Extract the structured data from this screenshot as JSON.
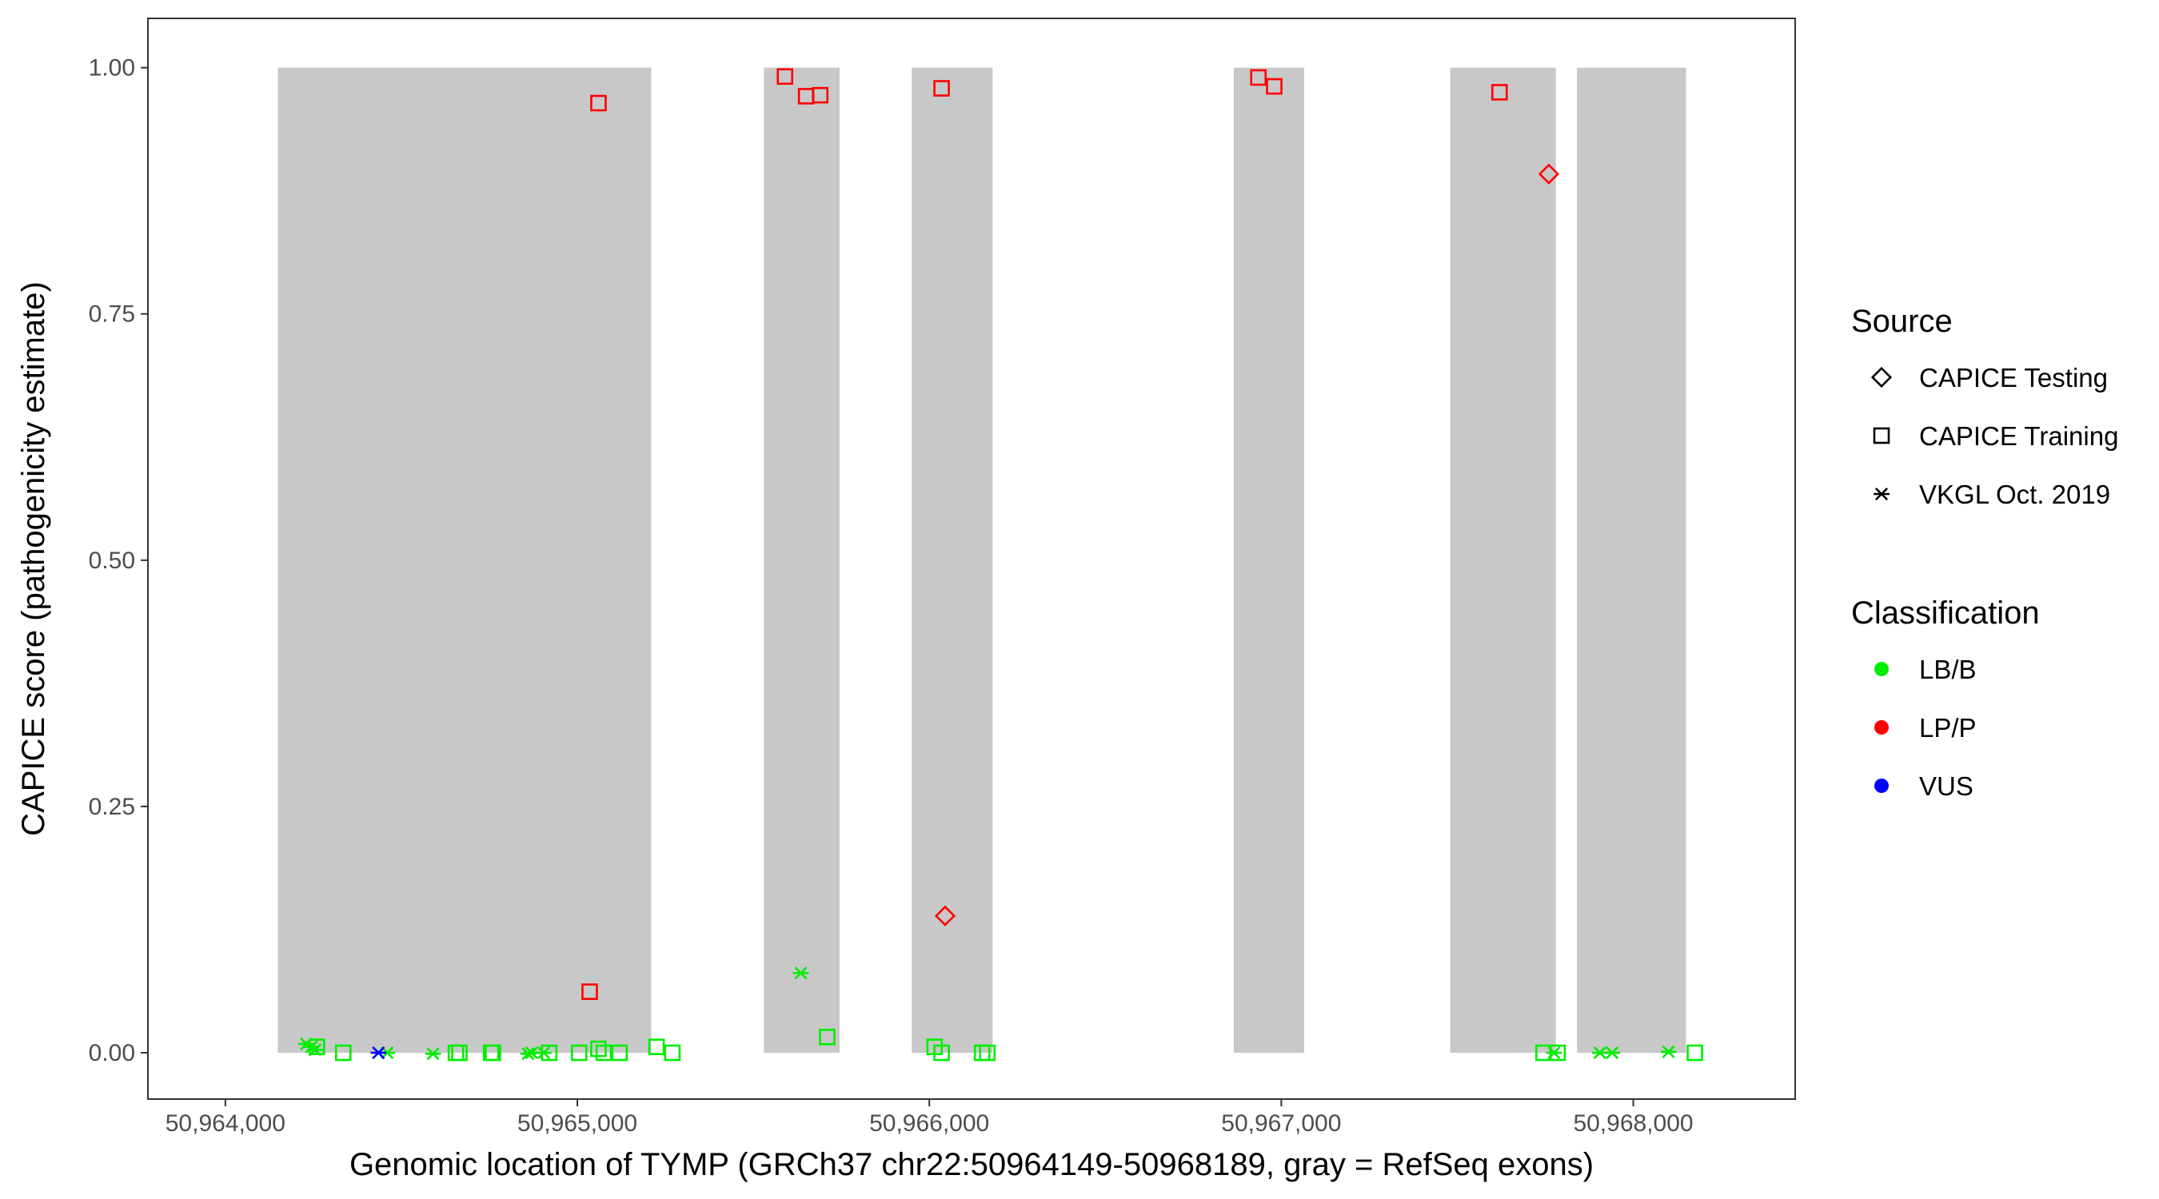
{
  "chart_data": {
    "type": "scatter",
    "xlabel": "Genomic location of TYMP (GRCh37 chr22:50964149-50968189, gray = RefSeq exons)",
    "ylabel": "CAPICE score (pathogenicity estimate)",
    "xlim": [
      50963780,
      50968460
    ],
    "ylim": [
      -0.047,
      1.05
    ],
    "x_ticks": [
      50964000,
      50965000,
      50966000,
      50967000,
      50968000
    ],
    "x_tick_labels": [
      "50,964,000",
      "50,965,000",
      "50,966,000",
      "50,967,000",
      "50,968,000"
    ],
    "y_ticks": [
      0,
      0.25,
      0.5,
      0.75,
      1.0
    ],
    "y_tick_labels": [
      "0.00",
      "0.25",
      "0.50",
      "0.75",
      "1.00"
    ],
    "grid": false,
    "exons": [
      [
        50964149,
        50965210
      ],
      [
        50965530,
        50965745
      ],
      [
        50965950,
        50966180
      ],
      [
        50966865,
        50967065
      ],
      [
        50967480,
        50967780
      ],
      [
        50967840,
        50968150
      ]
    ],
    "exon_color": "#c8c8c8",
    "legend": {
      "placement": "right",
      "source_title": "Source",
      "source_items": [
        {
          "label": "CAPICE Testing",
          "shape": "diamond"
        },
        {
          "label": "CAPICE Training",
          "shape": "square"
        },
        {
          "label": "VKGL Oct. 2019",
          "shape": "asterisk"
        }
      ],
      "class_title": "Classification",
      "class_items": [
        {
          "label": "LB/B",
          "color": "#00ee00"
        },
        {
          "label": "LP/P",
          "color": "#ff0000"
        },
        {
          "label": "VUS",
          "color": "#0000ff"
        }
      ]
    },
    "series": [
      {
        "name": "LB/B",
        "color": "#00ee00",
        "points": [
          {
            "x": 50964230,
            "y": 0.009,
            "shape": "asterisk"
          },
          {
            "x": 50964245,
            "y": 0.006,
            "shape": "asterisk"
          },
          {
            "x": 50964255,
            "y": 0.003,
            "shape": "asterisk"
          },
          {
            "x": 50964260,
            "y": 0.006,
            "shape": "square"
          },
          {
            "x": 50964335,
            "y": 0.0,
            "shape": "square"
          },
          {
            "x": 50964460,
            "y": 0.0,
            "shape": "asterisk"
          },
          {
            "x": 50964590,
            "y": -0.001,
            "shape": "asterisk"
          },
          {
            "x": 50964655,
            "y": 0.0,
            "shape": "square"
          },
          {
            "x": 50964665,
            "y": 0.0,
            "shape": "square"
          },
          {
            "x": 50964755,
            "y": 0.0,
            "shape": "square"
          },
          {
            "x": 50964760,
            "y": 0.0,
            "shape": "square"
          },
          {
            "x": 50964860,
            "y": -0.001,
            "shape": "asterisk"
          },
          {
            "x": 50964870,
            "y": 0.0,
            "shape": "asterisk"
          },
          {
            "x": 50964905,
            "y": 0.0,
            "shape": "asterisk"
          },
          {
            "x": 50964920,
            "y": 0.0,
            "shape": "square"
          },
          {
            "x": 50965005,
            "y": 0.0,
            "shape": "square"
          },
          {
            "x": 50965060,
            "y": 0.004,
            "shape": "square"
          },
          {
            "x": 50965075,
            "y": 0.0,
            "shape": "square"
          },
          {
            "x": 50965120,
            "y": 0.0,
            "shape": "square"
          },
          {
            "x": 50965225,
            "y": 0.006,
            "shape": "square"
          },
          {
            "x": 50965270,
            "y": 0.0,
            "shape": "square"
          },
          {
            "x": 50965635,
            "y": 0.081,
            "shape": "asterisk"
          },
          {
            "x": 50965710,
            "y": 0.016,
            "shape": "square"
          },
          {
            "x": 50966015,
            "y": 0.006,
            "shape": "square"
          },
          {
            "x": 50966035,
            "y": 0.0,
            "shape": "square"
          },
          {
            "x": 50966150,
            "y": 0.0,
            "shape": "square"
          },
          {
            "x": 50966165,
            "y": 0.0,
            "shape": "square"
          },
          {
            "x": 50967745,
            "y": 0.0,
            "shape": "square"
          },
          {
            "x": 50967775,
            "y": 0.0,
            "shape": "asterisk"
          },
          {
            "x": 50967785,
            "y": 0.0,
            "shape": "square"
          },
          {
            "x": 50967905,
            "y": 0.0,
            "shape": "asterisk"
          },
          {
            "x": 50967940,
            "y": 0.0,
            "shape": "asterisk"
          },
          {
            "x": 50968100,
            "y": 0.001,
            "shape": "asterisk"
          },
          {
            "x": 50968175,
            "y": 0.0,
            "shape": "square"
          }
        ]
      },
      {
        "name": "LP/P",
        "color": "#ff0000",
        "points": [
          {
            "x": 50965060,
            "y": 0.964,
            "shape": "square"
          },
          {
            "x": 50965035,
            "y": 0.062,
            "shape": "square"
          },
          {
            "x": 50965590,
            "y": 0.991,
            "shape": "square"
          },
          {
            "x": 50965650,
            "y": 0.971,
            "shape": "square"
          },
          {
            "x": 50965690,
            "y": 0.972,
            "shape": "square"
          },
          {
            "x": 50966035,
            "y": 0.979,
            "shape": "square"
          },
          {
            "x": 50966045,
            "y": 0.139,
            "shape": "diamond"
          },
          {
            "x": 50966935,
            "y": 0.99,
            "shape": "square"
          },
          {
            "x": 50966980,
            "y": 0.981,
            "shape": "square"
          },
          {
            "x": 50967620,
            "y": 0.975,
            "shape": "square"
          },
          {
            "x": 50967760,
            "y": 0.892,
            "shape": "diamond"
          }
        ]
      },
      {
        "name": "VUS",
        "color": "#0000ff",
        "points": [
          {
            "x": 50964435,
            "y": 0.0,
            "shape": "asterisk"
          }
        ]
      }
    ]
  }
}
